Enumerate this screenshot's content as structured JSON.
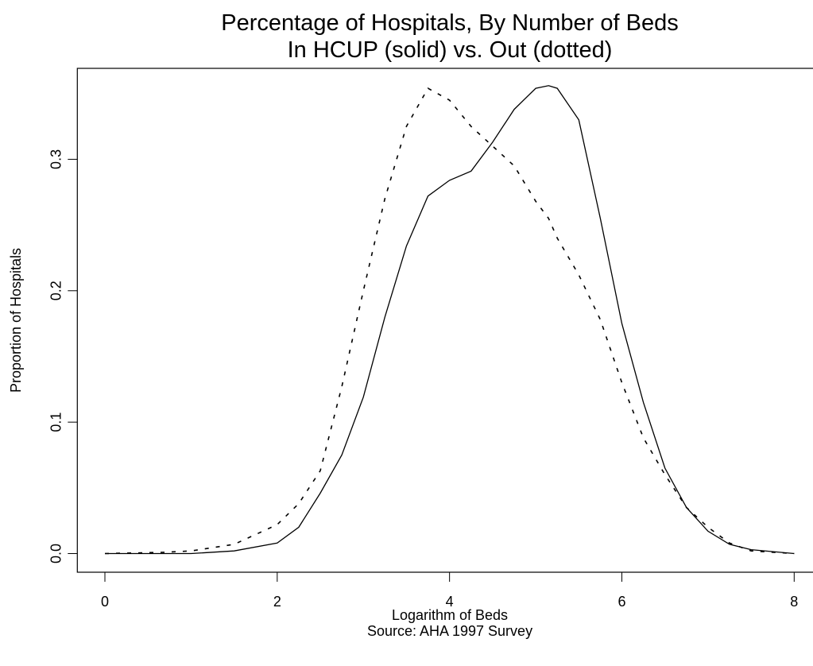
{
  "chart_data": {
    "type": "line",
    "title": [
      "Percentage of Hospitals, By Number of Beds",
      "In HCUP (solid) vs. Out (dotted)"
    ],
    "x_label": [
      "Logarithm of Beds",
      "Source: AHA 1997 Survey"
    ],
    "y_label": "Proportion of Hospitals",
    "x": [
      0,
      0.7,
      1,
      1.5,
      2,
      2.25,
      2.5,
      2.75,
      3,
      3.25,
      3.5,
      3.75,
      4,
      4.25,
      4.5,
      4.75,
      5,
      5.15,
      5.25,
      5.5,
      5.75,
      6,
      6.25,
      6.5,
      6.75,
      7,
      7.25,
      7.5,
      8
    ],
    "series": [
      {
        "color": "#000000",
        "line_style": "solid",
        "values": [
          0,
          0,
          0,
          0.002,
          0.008,
          0.02,
          0.046,
          0.075,
          0.119,
          0.18,
          0.234,
          0.272,
          0.284,
          0.291,
          0.313,
          0.338,
          0.354,
          0.356,
          0.354,
          0.33,
          0.255,
          0.175,
          0.115,
          0.065,
          0.035,
          0.017,
          0.007,
          0.003,
          0
        ]
      },
      {
        "color": "#000000",
        "line_style": "dotted",
        "values": [
          0,
          0.001,
          0.002,
          0.007,
          0.022,
          0.038,
          0.063,
          0.127,
          0.2,
          0.27,
          0.325,
          0.354,
          0.345,
          0.325,
          0.31,
          0.295,
          0.268,
          0.255,
          0.24,
          0.212,
          0.178,
          0.13,
          0.088,
          0.06,
          0.035,
          0.02,
          0.008,
          0.002,
          0
        ]
      }
    ],
    "xlim": [
      -0.32,
      8.32
    ],
    "ylim": [
      -0.0142,
      0.3692
    ],
    "xticks": [
      0,
      2,
      4,
      6,
      8
    ],
    "yticks": [
      {
        "value": 0,
        "label": "0.0"
      },
      0.1,
      0.2,
      0.3
    ]
  }
}
